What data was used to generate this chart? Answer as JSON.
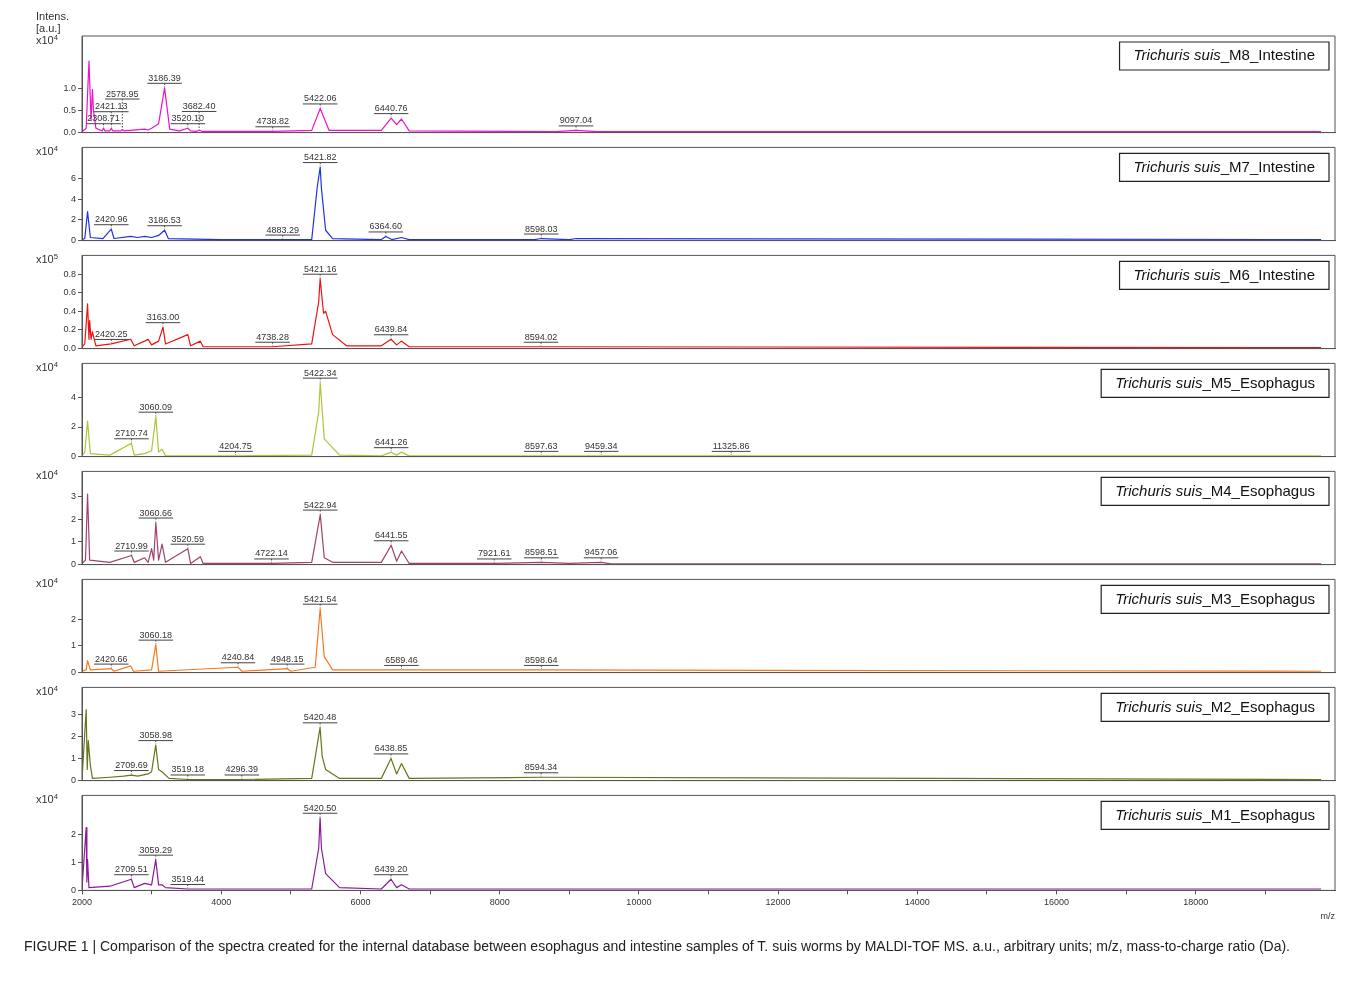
{
  "chart_data": [
    {
      "type": "line",
      "title": "Trichuris suis_M8_Intestine",
      "ylabel": "Intens. [a.u.] x10$^{4}$",
      "color": "#ee11cc",
      "marker": "none",
      "tick_labels": "y",
      "xlim": [
        2000,
        20000
      ],
      "ylim": [
        0,
        2.2
      ],
      "yticks": [
        {
          "value": 0,
          "label": "0.0"
        },
        {
          "value": 0.5,
          "label": "0.5"
        },
        {
          "value": 1,
          "label": "1.0"
        }
      ],
      "x": [
        2000,
        2060,
        2100,
        2130,
        2150,
        2165,
        2200,
        2290,
        2308.71,
        2330,
        2400,
        2421.13,
        2440,
        2560,
        2578.95,
        2600,
        2900,
        2950,
        3000,
        3100,
        3186.39,
        3260,
        3400,
        3520.1,
        3560,
        3650,
        3682.4,
        3720,
        4738.82,
        5300,
        5422.06,
        5550,
        6300,
        6440.76,
        6520,
        6590,
        6700,
        8800,
        9097.04,
        9400,
        19800
      ],
      "values": [
        0.02,
        0.1,
        1.63,
        0.3,
        0.98,
        0.5,
        0.1,
        0.04,
        0.1,
        0.04,
        0.04,
        0.1,
        0.04,
        0.04,
        0.07,
        0.04,
        0.08,
        0.06,
        0.1,
        0.2,
        1.02,
        0.08,
        0.04,
        0.1,
        0.04,
        0.03,
        0.06,
        0.03,
        0.03,
        0.05,
        0.55,
        0.05,
        0.05,
        0.33,
        0.18,
        0.31,
        0.04,
        0.02,
        0.05,
        0.02,
        0.02
      ],
      "annotations": [
        {
          "text": "2308.71",
          "x": 2308.71,
          "y": 0.1
        },
        {
          "text": "2421.13",
          "x": 2421.13,
          "y": 0.1
        },
        {
          "text": "2578.95",
          "x": 2578.95,
          "y": 0.07
        },
        {
          "text": "3186.39",
          "x": 3186.39,
          "y": 1.02
        },
        {
          "text": "3520.10",
          "x": 3520.1,
          "y": 0.1
        },
        {
          "text": "3682.40",
          "x": 3682.4,
          "y": 0.06
        },
        {
          "text": "4738.82",
          "x": 4738.82,
          "y": 0.03
        },
        {
          "text": "5422.06",
          "x": 5422.06,
          "y": 0.55
        },
        {
          "text": "6440.76",
          "x": 6440.76,
          "y": 0.33
        },
        {
          "text": "9097.04",
          "x": 9097.04,
          "y": 0.05
        }
      ]
    },
    {
      "type": "line",
      "title": "Trichuris suis_M7_Intestine",
      "ylabel": "x10$^{4}$",
      "color": "#2233dd",
      "marker": "none",
      "tick_labels": "y",
      "xlim": [
        2000,
        20000
      ],
      "ylim": [
        0,
        9
      ],
      "yticks": [
        0,
        2,
        4,
        6
      ],
      "x": [
        2000,
        2040,
        2080,
        2120,
        2300,
        2420.96,
        2460,
        2700,
        2800,
        2900,
        3000,
        3100,
        3186.53,
        3240,
        4000,
        4883.29,
        5300,
        5380,
        5421.82,
        5440,
        5500,
        5600,
        6300,
        6364.6,
        6450,
        6590,
        6700,
        8500,
        8598.03,
        9000,
        9100,
        19800
      ],
      "values": [
        0.1,
        0.2,
        2.8,
        0.3,
        0.2,
        1.1,
        0.2,
        0.4,
        0.3,
        0.4,
        0.3,
        0.5,
        1.0,
        0.2,
        0.1,
        0.1,
        0.1,
        5.2,
        7.1,
        5.0,
        1.0,
        0.2,
        0.1,
        0.4,
        0.1,
        0.3,
        0.1,
        0.1,
        0.2,
        0.1,
        0.2,
        0.1
      ],
      "annotations": [
        {
          "text": "2420.96",
          "x": 2420.96,
          "y": 1.1
        },
        {
          "text": "3186.53",
          "x": 3186.53,
          "y": 1.0
        },
        {
          "text": "4883.29",
          "x": 4883.29,
          "y": 0.1
        },
        {
          "text": "5421.82",
          "x": 5421.82,
          "y": 7.1
        },
        {
          "text": "6364.60",
          "x": 6364.6,
          "y": 0.4
        },
        {
          "text": "8598.03",
          "x": 8598.03,
          "y": 0.2
        }
      ]
    },
    {
      "type": "line",
      "title": "Trichuris suis_M6_Intestine",
      "ylabel": "x10$^{5}$",
      "color": "#ee1111",
      "marker": "none",
      "tick_labels": "y",
      "xlim": [
        2000,
        20000
      ],
      "ylim": [
        0,
        1.0
      ],
      "yticks": [
        {
          "value": 0,
          "label": "0.0"
        },
        0.2,
        0.4,
        0.6,
        0.8
      ],
      "x": [
        2000,
        2040,
        2080,
        2100,
        2110,
        2130,
        2150,
        2200,
        2420.25,
        2700,
        2750,
        2900,
        2950,
        3000,
        3100,
        3163.0,
        3200,
        3520,
        3560,
        3700,
        3740,
        4738.28,
        5300,
        5400,
        5421.16,
        5470,
        5500,
        5600,
        5800,
        6300,
        6439.84,
        6520,
        6590,
        6700,
        8594.02,
        19800
      ],
      "values": [
        0.02,
        0.05,
        0.48,
        0.1,
        0.3,
        0.1,
        0.18,
        0.03,
        0.05,
        0.1,
        0.03,
        0.08,
        0.1,
        0.04,
        0.08,
        0.23,
        0.05,
        0.15,
        0.03,
        0.08,
        0.02,
        0.02,
        0.05,
        0.5,
        0.75,
        0.38,
        0.4,
        0.15,
        0.03,
        0.03,
        0.1,
        0.04,
        0.08,
        0.02,
        0.02,
        0.01
      ],
      "annotations": [
        {
          "text": "2420.25",
          "x": 2420.25,
          "y": 0.05
        },
        {
          "text": "3163.00",
          "x": 3163.0,
          "y": 0.23
        },
        {
          "text": "4738.28",
          "x": 4738.28,
          "y": 0.02
        },
        {
          "text": "5421.16",
          "x": 5421.16,
          "y": 0.75
        },
        {
          "text": "6439.84",
          "x": 6439.84,
          "y": 0.1
        },
        {
          "text": "8594.02",
          "x": 8594.02,
          "y": 0.02
        }
      ]
    },
    {
      "type": "line",
      "title": "Trichuris suis_M5_Esophagus",
      "ylabel": "x10$^{4}$",
      "color": "#a8c83a",
      "marker": "none",
      "tick_labels": "y",
      "xlim": [
        2000,
        20000
      ],
      "ylim": [
        0,
        6.3
      ],
      "yticks": [
        0,
        2,
        4
      ],
      "x": [
        2000,
        2040,
        2080,
        2120,
        2400,
        2710.74,
        2750,
        2900,
        3000,
        3060.09,
        3100,
        3150,
        3200,
        4204.75,
        5300,
        5400,
        5422.34,
        5480,
        5520,
        5700,
        6300,
        6441.26,
        6520,
        6590,
        6700,
        8597.63,
        9459.34,
        11325.86,
        19800
      ],
      "values": [
        0.05,
        0.3,
        2.4,
        0.2,
        0.1,
        0.9,
        0.1,
        0.2,
        0.4,
        2.7,
        0.3,
        0.5,
        0.05,
        0.05,
        0.1,
        3.0,
        5.0,
        1.2,
        1.0,
        0.1,
        0.05,
        0.3,
        0.1,
        0.3,
        0.05,
        0.05,
        0.05,
        0.05,
        0.05
      ],
      "annotations": [
        {
          "text": "2710.74",
          "x": 2710.74,
          "y": 0.9
        },
        {
          "text": "3060.09",
          "x": 3060.09,
          "y": 2.7
        },
        {
          "text": "4204.75",
          "x": 4204.75,
          "y": 0.05
        },
        {
          "text": "5422.34",
          "x": 5422.34,
          "y": 5.0
        },
        {
          "text": "6441.26",
          "x": 6441.26,
          "y": 0.3
        },
        {
          "text": "8597.63",
          "x": 8597.63,
          "y": 0.05
        },
        {
          "text": "9459.34",
          "x": 9459.34,
          "y": 0.05
        },
        {
          "text": "11325.86",
          "x": 11325.86,
          "y": 0.05
        }
      ]
    },
    {
      "type": "line",
      "title": "Trichuris suis_M4_Esophagus",
      "ylabel": "x10$^{4}$",
      "color": "#a0416e",
      "marker": "none",
      "tick_labels": "y",
      "xlim": [
        2000,
        20000
      ],
      "ylim": [
        0,
        4.1
      ],
      "yticks": [
        0,
        1,
        2,
        3
      ],
      "x": [
        2000,
        2050,
        2080,
        2110,
        2400,
        2710.99,
        2750,
        2900,
        2950,
        3000,
        3030,
        3060.66,
        3100,
        3150,
        3200,
        3520.59,
        3560,
        3700,
        3740,
        4722.14,
        5300,
        5422.94,
        5480,
        5600,
        6300,
        6441.55,
        6520,
        6590,
        6700,
        7921.61,
        8598.51,
        9000,
        9457.06,
        9600,
        19800
      ],
      "values": [
        0.05,
        0.2,
        3.1,
        0.2,
        0.1,
        0.4,
        0.1,
        0.3,
        0.1,
        0.7,
        0.2,
        1.85,
        0.2,
        0.9,
        0.1,
        0.7,
        0.05,
        0.35,
        0.05,
        0.05,
        0.1,
        2.2,
        0.3,
        0.1,
        0.1,
        0.85,
        0.15,
        0.6,
        0.05,
        0.05,
        0.1,
        0.05,
        0.1,
        0.03,
        0.03
      ],
      "annotations": [
        {
          "text": "2710.99",
          "x": 2710.99,
          "y": 0.4
        },
        {
          "text": "3060.66",
          "x": 3060.66,
          "y": 1.85
        },
        {
          "text": "3520.59",
          "x": 3520.59,
          "y": 0.7
        },
        {
          "text": "4722.14",
          "x": 4722.14,
          "y": 0.05
        },
        {
          "text": "5422.94",
          "x": 5422.94,
          "y": 2.2
        },
        {
          "text": "6441.55",
          "x": 6441.55,
          "y": 0.85
        },
        {
          "text": "7921.61",
          "x": 7921.61,
          "y": 0.05
        },
        {
          "text": "8598.51",
          "x": 8598.51,
          "y": 0.1
        },
        {
          "text": "9457.06",
          "x": 9457.06,
          "y": 0.1
        }
      ]
    },
    {
      "type": "line",
      "title": "Trichuris suis_M3_Esophagus",
      "ylabel": "x10$^{4}$",
      "color": "#f57a1e",
      "marker": "none",
      "tick_labels": "y",
      "xlim": [
        2000,
        20000
      ],
      "ylim": [
        0,
        3.5
      ],
      "yticks": [
        0,
        1,
        2
      ],
      "x": [
        2000,
        2060,
        2080,
        2120,
        2420.66,
        2460,
        2700,
        2740,
        3000,
        3060.18,
        3100,
        4240.84,
        4300,
        4948.15,
        5000,
        5350,
        5421.54,
        5480,
        5600,
        6589.46,
        8598.64,
        19800
      ],
      "values": [
        0.05,
        0.1,
        0.45,
        0.1,
        0.15,
        0.05,
        0.25,
        0.05,
        0.1,
        1.05,
        0.05,
        0.2,
        0.05,
        0.15,
        0.05,
        0.2,
        2.4,
        0.6,
        0.1,
        0.1,
        0.1,
        0.05
      ],
      "annotations": [
        {
          "text": "2420.66",
          "x": 2420.66,
          "y": 0.15
        },
        {
          "text": "3060.18",
          "x": 3060.18,
          "y": 1.05
        },
        {
          "text": "4240.84",
          "x": 4240.84,
          "y": 0.2
        },
        {
          "text": "4948.15",
          "x": 4948.15,
          "y": 0.15
        },
        {
          "text": "5421.54",
          "x": 5421.54,
          "y": 2.4
        },
        {
          "text": "6589.46",
          "x": 6589.46,
          "y": 0.1
        },
        {
          "text": "8598.64",
          "x": 8598.64,
          "y": 0.1
        }
      ]
    },
    {
      "type": "line",
      "title": "Trichuris suis_M2_Esophagus",
      "ylabel": "x10$^{4}$",
      "color": "#66761a",
      "marker": "none",
      "tick_labels": "y",
      "xlim": [
        2000,
        20000
      ],
      "ylim": [
        0,
        4.2
      ],
      "yticks": [
        0,
        1,
        2,
        3
      ],
      "x": [
        2000,
        2060,
        2075,
        2090,
        2120,
        2150,
        2400,
        2600,
        2709.69,
        2800,
        2950,
        3000,
        3058.98,
        3100,
        3150,
        3250,
        3519.18,
        4296.39,
        5300,
        5420.48,
        5450,
        5500,
        5700,
        6300,
        6438.85,
        6520,
        6590,
        6700,
        8594.34,
        19800
      ],
      "values": [
        0.05,
        3.2,
        0.5,
        1.8,
        0.7,
        0.1,
        0.15,
        0.2,
        0.25,
        0.2,
        0.3,
        0.4,
        1.6,
        0.5,
        0.4,
        0.1,
        0.05,
        0.05,
        0.1,
        2.4,
        1.1,
        0.5,
        0.1,
        0.1,
        1.0,
        0.3,
        0.77,
        0.1,
        0.15,
        0.05
      ],
      "annotations": [
        {
          "text": "2709.69",
          "x": 2709.69,
          "y": 0.25
        },
        {
          "text": "3058.98",
          "x": 3058.98,
          "y": 1.6
        },
        {
          "text": "3519.18",
          "x": 3519.18,
          "y": 0.05
        },
        {
          "text": "4296.39",
          "x": 4296.39,
          "y": 0.05
        },
        {
          "text": "5420.48",
          "x": 5420.48,
          "y": 2.4
        },
        {
          "text": "6438.85",
          "x": 6438.85,
          "y": 1.0
        },
        {
          "text": "8594.34",
          "x": 8594.34,
          "y": 0.15
        }
      ]
    },
    {
      "type": "line",
      "title": "Trichuris suis_M1_Esophagus",
      "ylabel": "x10$^{4}$",
      "xlabel": "m/z",
      "color": "#8a1a9a",
      "marker": "none",
      "xlim": [
        2000,
        20000
      ],
      "ylim": [
        0,
        3.4
      ],
      "yticks": [
        0,
        1,
        2
      ],
      "xticks": [
        2000,
        {
          "value": 3000,
          "label": null
        },
        4000,
        {
          "value": 5000,
          "label": null
        },
        6000,
        {
          "value": 7000,
          "label": null
        },
        8000,
        {
          "value": 9000,
          "label": null
        },
        10000,
        {
          "value": 11000,
          "label": null
        },
        12000,
        {
          "value": 13000,
          "label": null
        },
        14000,
        {
          "value": 15000,
          "label": null
        },
        16000,
        {
          "value": 17000,
          "label": null
        },
        18000,
        {
          "value": 19000,
          "label": null
        }
      ],
      "x": [
        2000,
        2060,
        2070,
        2080,
        2100,
        2400,
        2709.51,
        2750,
        2900,
        3000,
        3059.29,
        3100,
        3150,
        3200,
        3519.44,
        5300,
        5400,
        5420.5,
        5440,
        5500,
        5700,
        6300,
        6439.2,
        6520,
        6590,
        6700,
        19800
      ],
      "values": [
        0.05,
        2.25,
        0.3,
        1.1,
        0.1,
        0.15,
        0.4,
        0.1,
        0.25,
        0.2,
        1.1,
        0.2,
        0.2,
        0.1,
        0.05,
        0.05,
        1.5,
        2.6,
        1.5,
        0.6,
        0.1,
        0.05,
        0.4,
        0.1,
        0.2,
        0.05,
        0.05
      ],
      "annotations": [
        {
          "text": "2709.51",
          "x": 2709.51,
          "y": 0.4
        },
        {
          "text": "3059.29",
          "x": 3059.29,
          "y": 1.1
        },
        {
          "text": "3519.44",
          "x": 3519.44,
          "y": 0.05
        },
        {
          "text": "5420.50",
          "x": 5420.5,
          "y": 2.6
        },
        {
          "text": "6439.20",
          "x": 6439.2,
          "y": 0.4
        },
        "FIGURE 1 | Comparison of the spectra created for the internal database between esophagus and intestine samples of T. suis worms by MALDI-TOF MS. a.u., arbitrary units; m/z, mass-to-charge ratio (Da)."
      ]
    }
  ]
}
